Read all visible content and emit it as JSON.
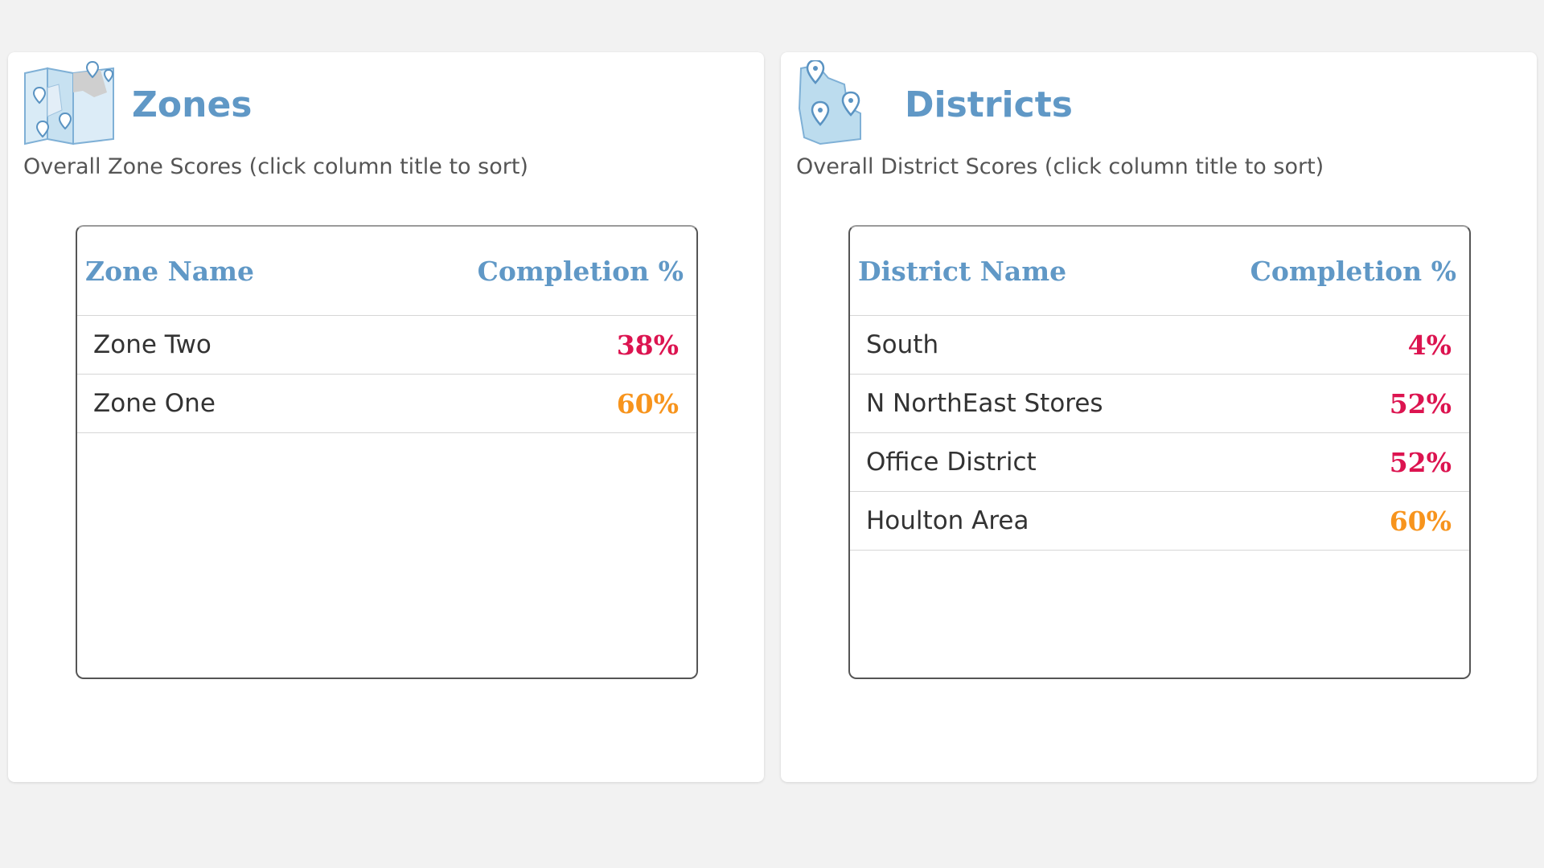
{
  "colors": {
    "accent": "#6098c6",
    "low_score": "#dc1450",
    "mid_score": "#f7941d",
    "text": "#333333",
    "subtle_text": "#555555",
    "background": "#f2f2f2"
  },
  "zones": {
    "icon": "zone-map-icon",
    "title": "Zones",
    "subtitle": "Overall Zone Scores (click column title to sort)",
    "columns": {
      "name": "Zone Name",
      "completion": "Completion %"
    },
    "rows": [
      {
        "name": "Zone Two",
        "completion": "38%",
        "status": "low"
      },
      {
        "name": "Zone One",
        "completion": "60%",
        "status": "mid"
      }
    ]
  },
  "districts": {
    "icon": "district-map-icon",
    "title": "Districts",
    "subtitle": "Overall District Scores (click column title to sort)",
    "columns": {
      "name": "District Name",
      "completion": "Completion %"
    },
    "rows": [
      {
        "name": "South",
        "completion": "4%",
        "status": "low"
      },
      {
        "name": "N NorthEast Stores",
        "completion": "52%",
        "status": "low"
      },
      {
        "name": "Office District",
        "completion": "52%",
        "status": "low"
      },
      {
        "name": "Houlton Area",
        "completion": "60%",
        "status": "mid"
      }
    ]
  }
}
